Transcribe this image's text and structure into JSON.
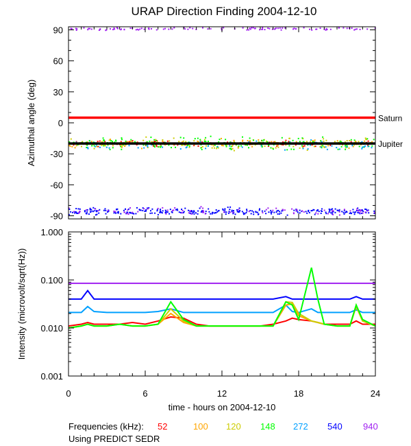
{
  "chart_data": [
    {
      "type": "scatter",
      "title": "URAP Direction Finding  2004-12-10",
      "ylabel": "Azimuthal angle (deg)",
      "xlim": [
        0,
        24
      ],
      "ylim": [
        -93,
        93
      ],
      "x_ticks": [
        "0",
        "6",
        "12",
        "18",
        "24"
      ],
      "y_ticks": [
        "90",
        "60",
        "30",
        "0",
        "-30",
        "-60",
        "-90"
      ],
      "reference_lines": [
        {
          "name": "Saturn",
          "value": 5,
          "color": "#ff0000"
        },
        {
          "name": "Jupiter",
          "value": -20,
          "color": "#000000"
        }
      ],
      "series": [
        {
          "name": "52",
          "color": "#ff0000",
          "clusters": [
            {
              "center": -20,
              "spread": 4,
              "x": [
                0,
                24
              ],
              "count": 120
            }
          ]
        },
        {
          "name": "100",
          "color": "#ffa500",
          "clusters": [
            {
              "center": -20,
              "spread": 6,
              "x": [
                0,
                24
              ],
              "count": 120
            }
          ]
        },
        {
          "name": "120",
          "color": "#cccc00",
          "clusters": [
            {
              "center": -20,
              "spread": 8,
              "x": [
                0,
                24
              ],
              "count": 120
            }
          ]
        },
        {
          "name": "148",
          "color": "#00ff00",
          "clusters": [
            {
              "center": -20,
              "spread": 8,
              "x": [
                0,
                24
              ],
              "count": 200
            }
          ]
        },
        {
          "name": "272",
          "color": "#00a0ff",
          "clusters": [
            {
              "center": -22,
              "spread": 7,
              "x": [
                0,
                24
              ],
              "count": 80
            }
          ]
        },
        {
          "name": "540",
          "color": "#0000ff",
          "clusters": [
            {
              "center": -86,
              "spread": 5,
              "x": [
                0,
                24
              ],
              "count": 300
            }
          ]
        },
        {
          "name": "940",
          "color": "#a020f0",
          "clusters": [
            {
              "center": 91,
              "spread": 2,
              "x": [
                0,
                24
              ],
              "count": 110
            },
            {
              "center": -85,
              "spread": 6,
              "x": [
                0,
                24
              ],
              "count": 80
            }
          ]
        }
      ]
    },
    {
      "type": "line",
      "xlabel": "time - hours on 2004-12-10",
      "ylabel": "Intensity (microvolt/sqrt(Hz))",
      "yscale": "log",
      "xlim": [
        0,
        24
      ],
      "ylim": [
        0.001,
        1.0
      ],
      "x_ticks": [
        "0",
        "6",
        "12",
        "18",
        "24"
      ],
      "y_ticks": [
        "1.000",
        "0.100",
        "0.010",
        "0.001"
      ],
      "x": [
        0,
        1,
        1.5,
        2,
        3,
        4,
        5,
        6,
        7,
        8,
        9,
        10,
        11,
        12,
        13,
        14,
        15,
        16,
        17,
        17.5,
        18,
        19,
        19.5,
        20,
        21,
        22,
        22.5,
        23,
        24
      ],
      "series": [
        {
          "name": "940",
          "color": "#a020f0",
          "values": [
            0.085,
            0.085,
            0.085,
            0.085,
            0.085,
            0.085,
            0.085,
            0.085,
            0.085,
            0.085,
            0.085,
            0.085,
            0.085,
            0.085,
            0.085,
            0.085,
            0.085,
            0.085,
            0.085,
            0.085,
            0.085,
            0.085,
            0.085,
            0.085,
            0.085,
            0.085,
            0.085,
            0.085,
            0.085
          ]
        },
        {
          "name": "540",
          "color": "#0000ff",
          "values": [
            0.04,
            0.04,
            0.06,
            0.04,
            0.04,
            0.04,
            0.04,
            0.04,
            0.04,
            0.04,
            0.04,
            0.04,
            0.04,
            0.04,
            0.04,
            0.04,
            0.04,
            0.04,
            0.045,
            0.04,
            0.04,
            0.04,
            0.04,
            0.04,
            0.04,
            0.04,
            0.045,
            0.04,
            0.04
          ]
        },
        {
          "name": "272",
          "color": "#00a0ff",
          "values": [
            0.021,
            0.021,
            0.028,
            0.022,
            0.021,
            0.021,
            0.021,
            0.021,
            0.022,
            0.025,
            0.021,
            0.021,
            0.021,
            0.021,
            0.021,
            0.021,
            0.021,
            0.021,
            0.03,
            0.022,
            0.021,
            0.025,
            0.021,
            0.021,
            0.021,
            0.021,
            0.024,
            0.021,
            0.021
          ]
        },
        {
          "name": "52",
          "color": "#ff0000",
          "values": [
            0.011,
            0.012,
            0.013,
            0.012,
            0.012,
            0.012,
            0.013,
            0.012,
            0.014,
            0.017,
            0.016,
            0.012,
            0.011,
            0.011,
            0.011,
            0.011,
            0.011,
            0.012,
            0.014,
            0.016,
            0.015,
            0.014,
            0.013,
            0.012,
            0.012,
            0.012,
            0.014,
            0.012,
            0.012
          ]
        },
        {
          "name": "100",
          "color": "#ffa500",
          "values": [
            0.01,
            0.011,
            0.012,
            0.011,
            0.011,
            0.012,
            0.011,
            0.011,
            0.012,
            0.02,
            0.013,
            0.011,
            0.011,
            0.011,
            0.011,
            0.011,
            0.011,
            0.011,
            0.03,
            0.032,
            0.018,
            0.014,
            0.013,
            0.012,
            0.011,
            0.011,
            0.028,
            0.014,
            0.011
          ]
        },
        {
          "name": "120",
          "color": "#cccc00",
          "values": [
            0.01,
            0.011,
            0.012,
            0.011,
            0.011,
            0.012,
            0.011,
            0.011,
            0.012,
            0.025,
            0.014,
            0.011,
            0.011,
            0.011,
            0.011,
            0.011,
            0.011,
            0.011,
            0.035,
            0.034,
            0.02,
            0.014,
            0.013,
            0.012,
            0.011,
            0.011,
            0.03,
            0.014,
            0.011
          ]
        },
        {
          "name": "148",
          "color": "#00ff00",
          "values": [
            0.01,
            0.011,
            0.012,
            0.011,
            0.011,
            0.012,
            0.011,
            0.011,
            0.012,
            0.035,
            0.015,
            0.011,
            0.011,
            0.011,
            0.011,
            0.011,
            0.011,
            0.011,
            0.035,
            0.03,
            0.015,
            0.18,
            0.04,
            0.012,
            0.011,
            0.011,
            0.03,
            0.015,
            0.011
          ]
        }
      ]
    }
  ],
  "legend": {
    "label": "Frequencies (kHz):",
    "items": [
      {
        "label": "52",
        "color": "#ff0000"
      },
      {
        "label": "100",
        "color": "#ffa500"
      },
      {
        "label": "120",
        "color": "#cccc00"
      },
      {
        "label": "148",
        "color": "#00ff00"
      },
      {
        "label": "272",
        "color": "#00a0ff"
      },
      {
        "label": "540",
        "color": "#0000ff"
      },
      {
        "label": "940",
        "color": "#a020f0"
      }
    ]
  },
  "footer": "Using PREDICT SEDR"
}
